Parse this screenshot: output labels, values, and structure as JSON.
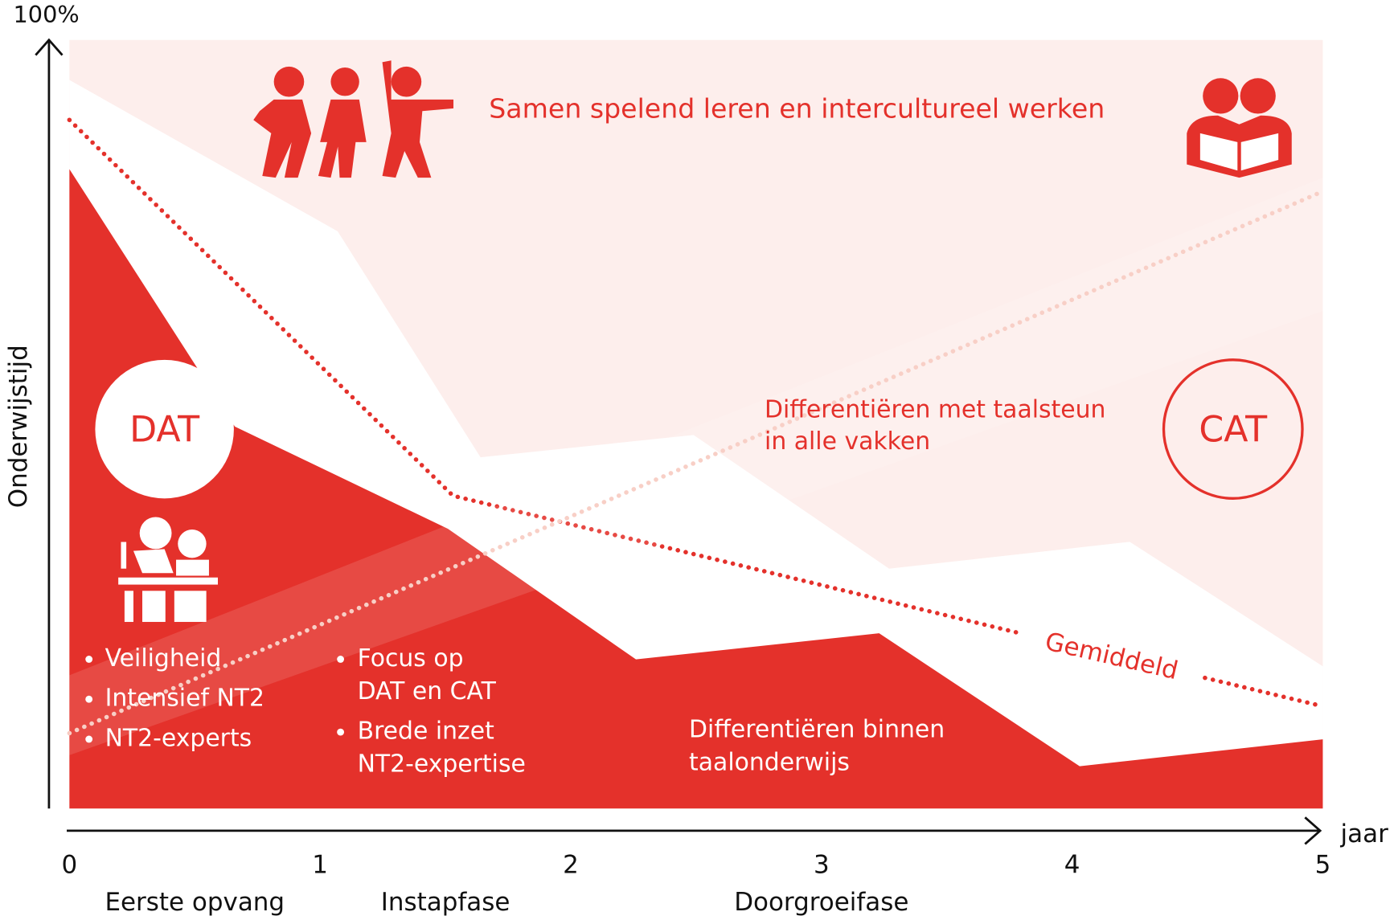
{
  "chart_data": {
    "type": "area",
    "y_label": "Onderwijstijd",
    "x_label": "jaar",
    "xlim": [
      0,
      5
    ],
    "xticks": [
      0,
      1,
      2,
      3,
      4,
      5
    ],
    "ylim": [
      0,
      100
    ],
    "yticks": [
      {
        "value": 100,
        "label": "100%"
      }
    ],
    "background": "#fdeeec",
    "phases": [
      {
        "label": "Eerste opvang",
        "from": 0,
        "to": 1
      },
      {
        "label": "Instapfase",
        "from": 1,
        "to": 2
      },
      {
        "label": "Doorgroeifase",
        "from": 2,
        "to": 4
      }
    ],
    "series": [
      {
        "kind": "area",
        "color": "#ffffff",
        "x": [
          0,
          1.07,
          1.64,
          2.49,
          3.27,
          4.23,
          5
        ],
        "values": [
          94.8,
          75.1,
          45.7,
          48.6,
          31.2,
          34.7,
          18.5
        ]
      },
      {
        "kind": "area",
        "color": "#e4312b",
        "x": [
          0,
          0.66,
          1.51,
          2.26,
          3.23,
          4.03,
          5
        ],
        "values": [
          83.2,
          49.7,
          36.4,
          19.4,
          22.8,
          5.5,
          9.0
        ]
      },
      {
        "kind": "line",
        "name": "Gemiddeld",
        "color": "#e4312b",
        "x": [
          0,
          1.53,
          3.78,
          null,
          4.53,
          5
        ],
        "values": [
          89.6,
          40.7,
          22.9,
          null,
          17.0,
          13.3
        ]
      },
      {
        "kind": "line",
        "color": "#f7c9bf",
        "x": [
          0,
          5
        ],
        "values": [
          9.8,
          80.3
        ]
      }
    ],
    "annotations": {
      "top": "Samen spelend leren en intercultureel werken",
      "dat": "DAT",
      "cat": "CAT",
      "cat_text": [
        "Differentiëren met taalsteun",
        "in alle vakken"
      ],
      "dat_points": [
        "Veiligheid",
        "Intensief NT2",
        "NT2-experts"
      ],
      "instap_points": [
        [
          "Focus op",
          "DAT en CAT"
        ],
        [
          "Brede inzet",
          "NT2-expertise"
        ]
      ],
      "bottom_text": [
        "Differentiëren binnen",
        "taalonderwijs"
      ]
    }
  }
}
